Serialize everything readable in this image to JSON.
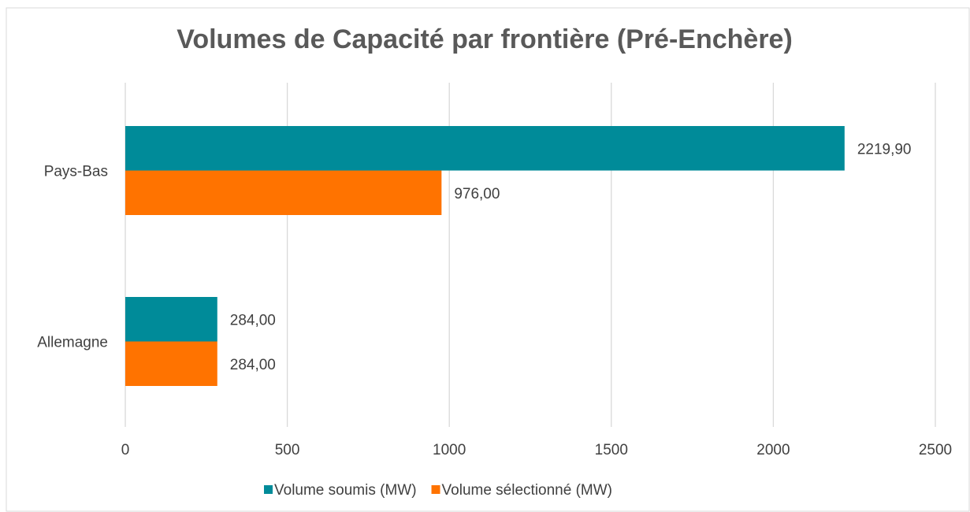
{
  "chart_data": {
    "type": "bar",
    "orientation": "horizontal",
    "title": "Volumes de Capacité par frontière (Pré-Enchère)",
    "categories": [
      "Pays-Bas",
      "Allemagne"
    ],
    "series": [
      {
        "name": "Volume soumis (MW)",
        "color": "#008b99",
        "values": [
          2219.9,
          284
        ],
        "value_labels": [
          "2219,90",
          "284,00"
        ]
      },
      {
        "name": "Volume sélectionné (MW)",
        "color": "#ff7300",
        "values": [
          976,
          284
        ],
        "value_labels": [
          "976,00",
          "284,00"
        ]
      }
    ],
    "xlim": [
      0,
      2500
    ],
    "xticks": [
      0,
      500,
      1000,
      1500,
      2000,
      2500
    ],
    "grid": true,
    "legend": "bottom"
  }
}
